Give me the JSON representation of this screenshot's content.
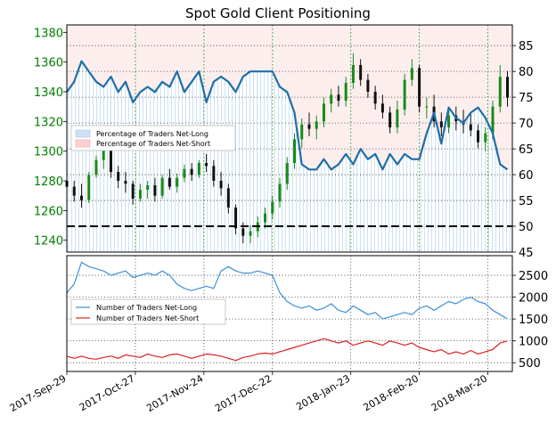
{
  "chart_data": [
    {
      "type": "line",
      "title": "Spot Gold Client Positioning",
      "left_axis": {
        "ticks": [
          1240,
          1260,
          1280,
          1300,
          1320,
          1340,
          1360,
          1380
        ],
        "range": [
          1232,
          1385
        ],
        "color": "#008000"
      },
      "right_axis": {
        "ticks": [
          45,
          50,
          55,
          60,
          65,
          70,
          75,
          80,
          85
        ],
        "range": [
          45,
          89
        ]
      },
      "fifty_line": 50,
      "legend": {
        "placement": "middle-left",
        "entries": [
          "Percentage of Traders Net-Long",
          "Percentage of Traders Net-Short"
        ]
      },
      "series": [
        {
          "name": "Percentage of Traders Net-Long",
          "color": "#1f6fa8",
          "x": [
            "2017-09-29",
            "2017-10-02",
            "2017-10-05",
            "2017-10-08",
            "2017-10-11",
            "2017-10-14",
            "2017-10-17",
            "2017-10-20",
            "2017-10-23",
            "2017-10-26",
            "2017-10-29",
            "2017-11-01",
            "2017-11-04",
            "2017-11-07",
            "2017-11-10",
            "2017-11-13",
            "2017-11-16",
            "2017-11-19",
            "2017-11-22",
            "2017-11-25",
            "2017-11-28",
            "2017-12-01",
            "2017-12-04",
            "2017-12-07",
            "2017-12-10",
            "2017-12-13",
            "2017-12-16",
            "2017-12-19",
            "2017-12-22",
            "2017-12-25",
            "2017-12-28",
            "2017-12-31",
            "2018-01-03",
            "2018-01-06",
            "2018-01-09",
            "2018-01-12",
            "2018-01-15",
            "2018-01-18",
            "2018-01-21",
            "2018-01-24",
            "2018-01-27",
            "2018-01-30",
            "2018-02-02",
            "2018-02-05",
            "2018-02-08",
            "2018-02-11",
            "2018-02-14",
            "2018-02-17",
            "2018-02-20",
            "2018-02-23",
            "2018-02-26",
            "2018-03-01",
            "2018-03-04",
            "2018-03-07",
            "2018-03-10",
            "2018-03-13",
            "2018-03-16",
            "2018-03-19",
            "2018-03-22",
            "2018-03-25",
            "2018-03-28"
          ],
          "values": [
            76,
            78,
            82,
            80,
            78,
            77,
            79,
            76,
            78,
            74,
            76,
            77,
            76,
            78,
            77,
            80,
            76,
            78,
            80,
            74,
            78,
            79,
            78,
            76,
            79,
            80,
            80,
            80,
            80,
            77,
            76,
            72,
            62,
            61,
            61,
            63,
            61,
            62,
            64,
            62,
            65,
            63,
            64,
            61,
            64,
            62,
            64,
            63,
            63,
            68,
            72,
            66,
            73,
            71,
            70,
            72,
            73,
            71,
            68,
            62,
            61
          ]
        }
      ],
      "candles": [
        {
          "x": "2017-09-29",
          "o": 1280,
          "h": 1285,
          "l": 1271,
          "c": 1276
        },
        {
          "x": "2017-10-02",
          "o": 1276,
          "h": 1280,
          "l": 1266,
          "c": 1270
        },
        {
          "x": "2017-10-05",
          "o": 1270,
          "h": 1278,
          "l": 1262,
          "c": 1267
        },
        {
          "x": "2017-10-08",
          "o": 1267,
          "h": 1286,
          "l": 1265,
          "c": 1284
        },
        {
          "x": "2017-10-11",
          "o": 1284,
          "h": 1297,
          "l": 1282,
          "c": 1294
        },
        {
          "x": "2017-10-14",
          "o": 1294,
          "h": 1308,
          "l": 1288,
          "c": 1302
        },
        {
          "x": "2017-10-17",
          "o": 1302,
          "h": 1305,
          "l": 1282,
          "c": 1286
        },
        {
          "x": "2017-10-20",
          "o": 1286,
          "h": 1290,
          "l": 1275,
          "c": 1280
        },
        {
          "x": "2017-10-23",
          "o": 1280,
          "h": 1286,
          "l": 1272,
          "c": 1278
        },
        {
          "x": "2017-10-26",
          "o": 1278,
          "h": 1280,
          "l": 1264,
          "c": 1268
        },
        {
          "x": "2017-10-29",
          "o": 1268,
          "h": 1278,
          "l": 1266,
          "c": 1274
        },
        {
          "x": "2017-11-01",
          "o": 1274,
          "h": 1280,
          "l": 1268,
          "c": 1277
        },
        {
          "x": "2017-11-04",
          "o": 1277,
          "h": 1282,
          "l": 1266,
          "c": 1270
        },
        {
          "x": "2017-11-07",
          "o": 1270,
          "h": 1284,
          "l": 1268,
          "c": 1282
        },
        {
          "x": "2017-11-10",
          "o": 1282,
          "h": 1288,
          "l": 1274,
          "c": 1276
        },
        {
          "x": "2017-11-13",
          "o": 1276,
          "h": 1285,
          "l": 1272,
          "c": 1282
        },
        {
          "x": "2017-11-16",
          "o": 1282,
          "h": 1291,
          "l": 1279,
          "c": 1288
        },
        {
          "x": "2017-11-19",
          "o": 1288,
          "h": 1292,
          "l": 1280,
          "c": 1284
        },
        {
          "x": "2017-11-22",
          "o": 1284,
          "h": 1294,
          "l": 1282,
          "c": 1292
        },
        {
          "x": "2017-11-25",
          "o": 1292,
          "h": 1298,
          "l": 1286,
          "c": 1290
        },
        {
          "x": "2017-11-28",
          "o": 1290,
          "h": 1294,
          "l": 1276,
          "c": 1280
        },
        {
          "x": "2017-12-01",
          "o": 1280,
          "h": 1286,
          "l": 1270,
          "c": 1275
        },
        {
          "x": "2017-12-04",
          "o": 1275,
          "h": 1278,
          "l": 1258,
          "c": 1262
        },
        {
          "x": "2017-12-07",
          "o": 1262,
          "h": 1264,
          "l": 1244,
          "c": 1248
        },
        {
          "x": "2017-12-10",
          "o": 1248,
          "h": 1252,
          "l": 1238,
          "c": 1243
        },
        {
          "x": "2017-12-13",
          "o": 1243,
          "h": 1250,
          "l": 1238,
          "c": 1246
        },
        {
          "x": "2017-12-16",
          "o": 1246,
          "h": 1256,
          "l": 1242,
          "c": 1252
        },
        {
          "x": "2017-12-19",
          "o": 1252,
          "h": 1262,
          "l": 1248,
          "c": 1258
        },
        {
          "x": "2017-12-22",
          "o": 1258,
          "h": 1270,
          "l": 1254,
          "c": 1266
        },
        {
          "x": "2017-12-25",
          "o": 1266,
          "h": 1282,
          "l": 1262,
          "c": 1278
        },
        {
          "x": "2017-12-28",
          "o": 1278,
          "h": 1296,
          "l": 1274,
          "c": 1292
        },
        {
          "x": "2017-12-31",
          "o": 1292,
          "h": 1312,
          "l": 1288,
          "c": 1308
        },
        {
          "x": "2018-01-03",
          "o": 1308,
          "h": 1322,
          "l": 1302,
          "c": 1318
        },
        {
          "x": "2018-01-06",
          "o": 1318,
          "h": 1326,
          "l": 1310,
          "c": 1315
        },
        {
          "x": "2018-01-09",
          "o": 1315,
          "h": 1324,
          "l": 1308,
          "c": 1320
        },
        {
          "x": "2018-01-12",
          "o": 1320,
          "h": 1336,
          "l": 1316,
          "c": 1332
        },
        {
          "x": "2018-01-15",
          "o": 1332,
          "h": 1342,
          "l": 1326,
          "c": 1338
        },
        {
          "x": "2018-01-18",
          "o": 1338,
          "h": 1344,
          "l": 1330,
          "c": 1334
        },
        {
          "x": "2018-01-21",
          "o": 1334,
          "h": 1350,
          "l": 1330,
          "c": 1346
        },
        {
          "x": "2018-01-24",
          "o": 1346,
          "h": 1366,
          "l": 1342,
          "c": 1358
        },
        {
          "x": "2018-01-27",
          "o": 1358,
          "h": 1362,
          "l": 1344,
          "c": 1348
        },
        {
          "x": "2018-01-30",
          "o": 1348,
          "h": 1352,
          "l": 1336,
          "c": 1340
        },
        {
          "x": "2018-02-02",
          "o": 1340,
          "h": 1344,
          "l": 1328,
          "c": 1332
        },
        {
          "x": "2018-02-05",
          "o": 1332,
          "h": 1338,
          "l": 1322,
          "c": 1326
        },
        {
          "x": "2018-02-08",
          "o": 1326,
          "h": 1330,
          "l": 1312,
          "c": 1316
        },
        {
          "x": "2018-02-11",
          "o": 1316,
          "h": 1334,
          "l": 1312,
          "c": 1328
        },
        {
          "x": "2018-02-14",
          "o": 1328,
          "h": 1352,
          "l": 1324,
          "c": 1348
        },
        {
          "x": "2018-02-17",
          "o": 1348,
          "h": 1362,
          "l": 1344,
          "c": 1356
        },
        {
          "x": "2018-02-20",
          "o": 1356,
          "h": 1358,
          "l": 1326,
          "c": 1330
        },
        {
          "x": "2018-02-23",
          "o": 1330,
          "h": 1336,
          "l": 1322,
          "c": 1330
        },
        {
          "x": "2018-02-26",
          "o": 1330,
          "h": 1338,
          "l": 1316,
          "c": 1320
        },
        {
          "x": "2018-03-01",
          "o": 1320,
          "h": 1326,
          "l": 1310,
          "c": 1316
        },
        {
          "x": "2018-03-04",
          "o": 1316,
          "h": 1330,
          "l": 1312,
          "c": 1324
        },
        {
          "x": "2018-03-07",
          "o": 1324,
          "h": 1330,
          "l": 1314,
          "c": 1320
        },
        {
          "x": "2018-03-10",
          "o": 1320,
          "h": 1328,
          "l": 1312,
          "c": 1318
        },
        {
          "x": "2018-03-13",
          "o": 1318,
          "h": 1326,
          "l": 1310,
          "c": 1314
        },
        {
          "x": "2018-03-16",
          "o": 1314,
          "h": 1318,
          "l": 1302,
          "c": 1306
        },
        {
          "x": "2018-03-19",
          "o": 1306,
          "h": 1316,
          "l": 1300,
          "c": 1312
        },
        {
          "x": "2018-03-22",
          "o": 1312,
          "h": 1334,
          "l": 1308,
          "c": 1330
        },
        {
          "x": "2018-03-25",
          "o": 1330,
          "h": 1358,
          "l": 1326,
          "c": 1350
        },
        {
          "x": "2018-03-28",
          "o": 1350,
          "h": 1354,
          "l": 1330,
          "c": 1336
        }
      ]
    },
    {
      "type": "line",
      "y_axis": {
        "ticks": [
          500,
          1000,
          1500,
          2000,
          2500
        ],
        "range": [
          300,
          2950
        ]
      },
      "legend": {
        "placement": "middle-left",
        "entries": [
          "Number of Traders Net-Long",
          "Number of Traders Net-Short"
        ]
      },
      "x_ticks": [
        "2017-Sep-29",
        "2017-Oct-27",
        "2017-Nov-24",
        "2017-Dec-22",
        "2018-Jan-23",
        "2018-Feb-20",
        "2018-Mar-20"
      ],
      "series": [
        {
          "name": "Number of Traders Net-Long",
          "color": "#3d8fd8",
          "x": [
            "2017-09-29",
            "2017-10-02",
            "2017-10-05",
            "2017-10-08",
            "2017-10-11",
            "2017-10-14",
            "2017-10-17",
            "2017-10-20",
            "2017-10-23",
            "2017-10-26",
            "2017-10-29",
            "2017-11-01",
            "2017-11-04",
            "2017-11-07",
            "2017-11-10",
            "2017-11-13",
            "2017-11-16",
            "2017-11-19",
            "2017-11-22",
            "2017-11-25",
            "2017-11-28",
            "2017-12-01",
            "2017-12-04",
            "2017-12-07",
            "2017-12-10",
            "2017-12-13",
            "2017-12-16",
            "2017-12-19",
            "2017-12-22",
            "2017-12-25",
            "2017-12-28",
            "2017-12-31",
            "2018-01-03",
            "2018-01-06",
            "2018-01-09",
            "2018-01-12",
            "2018-01-15",
            "2018-01-18",
            "2018-01-21",
            "2018-01-24",
            "2018-01-27",
            "2018-01-30",
            "2018-02-02",
            "2018-02-05",
            "2018-02-08",
            "2018-02-11",
            "2018-02-14",
            "2018-02-17",
            "2018-02-20",
            "2018-02-23",
            "2018-02-26",
            "2018-03-01",
            "2018-03-04",
            "2018-03-07",
            "2018-03-10",
            "2018-03-13",
            "2018-03-16",
            "2018-03-19",
            "2018-03-22",
            "2018-03-25",
            "2018-03-28"
          ],
          "values": [
            2100,
            2300,
            2800,
            2700,
            2650,
            2600,
            2500,
            2550,
            2600,
            2450,
            2500,
            2550,
            2500,
            2600,
            2500,
            2300,
            2200,
            2150,
            2200,
            2250,
            2200,
            2600,
            2700,
            2600,
            2550,
            2550,
            2600,
            2550,
            2500,
            2100,
            1900,
            1800,
            1750,
            1800,
            1700,
            1750,
            1850,
            1700,
            1650,
            1800,
            1700,
            1600,
            1650,
            1500,
            1550,
            1600,
            1650,
            1600,
            1750,
            1800,
            1700,
            1800,
            1900,
            1850,
            1950,
            2000,
            1900,
            1850,
            1700,
            1600,
            1500
          ]
        },
        {
          "name": "Number of Traders Net-Short",
          "color": "#e02020",
          "x": [
            "2017-09-29",
            "2017-10-02",
            "2017-10-05",
            "2017-10-08",
            "2017-10-11",
            "2017-10-14",
            "2017-10-17",
            "2017-10-20",
            "2017-10-23",
            "2017-10-26",
            "2017-10-29",
            "2017-11-01",
            "2017-11-04",
            "2017-11-07",
            "2017-11-10",
            "2017-11-13",
            "2017-11-16",
            "2017-11-19",
            "2017-11-22",
            "2017-11-25",
            "2017-11-28",
            "2017-12-01",
            "2017-12-04",
            "2017-12-07",
            "2017-12-10",
            "2017-12-13",
            "2017-12-16",
            "2017-12-19",
            "2017-12-22",
            "2017-12-25",
            "2017-12-28",
            "2017-12-31",
            "2018-01-03",
            "2018-01-06",
            "2018-01-09",
            "2018-01-12",
            "2018-01-15",
            "2018-01-18",
            "2018-01-21",
            "2018-01-24",
            "2018-01-27",
            "2018-01-30",
            "2018-02-02",
            "2018-02-05",
            "2018-02-08",
            "2018-02-11",
            "2018-02-14",
            "2018-02-17",
            "2018-02-20",
            "2018-02-23",
            "2018-02-26",
            "2018-03-01",
            "2018-03-04",
            "2018-03-07",
            "2018-03-10",
            "2018-03-13",
            "2018-03-16",
            "2018-03-19",
            "2018-03-22",
            "2018-03-25",
            "2018-03-28"
          ],
          "values": [
            650,
            600,
            650,
            600,
            580,
            620,
            650,
            600,
            680,
            650,
            620,
            700,
            650,
            620,
            680,
            700,
            650,
            600,
            650,
            700,
            680,
            650,
            600,
            550,
            620,
            650,
            700,
            720,
            700,
            750,
            800,
            850,
            900,
            950,
            1000,
            1050,
            1000,
            950,
            1000,
            900,
            950,
            1000,
            950,
            900,
            1000,
            950,
            900,
            950,
            850,
            800,
            750,
            800,
            700,
            750,
            700,
            780,
            700,
            750,
            800,
            950,
            1000
          ]
        }
      ]
    }
  ]
}
